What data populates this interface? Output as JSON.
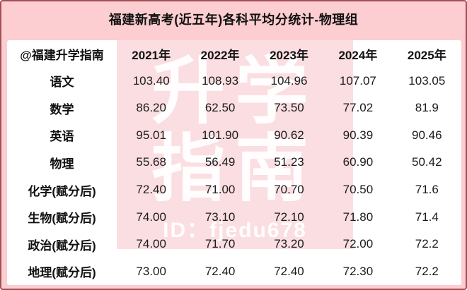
{
  "title": "福建新高考(近五年)各科平均分统计-物理组",
  "watermark": {
    "line1": "升学",
    "line2": "指南",
    "id_text": "ID：fjedu678"
  },
  "colors": {
    "page_background": "#fccdd1",
    "page_border": "#a34f55",
    "table_background": "#ffffff",
    "watermark_background": "#fbdee1",
    "watermark_text": "#ffffff",
    "text": "#1b1b1b"
  },
  "chart_data": {
    "type": "table",
    "title": "福建新高考(近五年)各科平均分统计-物理组",
    "columns": [
      "@福建升学指南",
      "2021年",
      "2022年",
      "2023年",
      "2024年",
      "2025年"
    ],
    "rows": [
      {
        "subject": "语文",
        "values": [
          "103.40",
          "108.93",
          "104.96",
          "107.07",
          "103.05"
        ]
      },
      {
        "subject": "数学",
        "values": [
          "86.20",
          "62.50",
          "73.50",
          "77.02",
          "81.9"
        ]
      },
      {
        "subject": "英语",
        "values": [
          "95.01",
          "101.90",
          "90.62",
          "90.39",
          "90.46"
        ]
      },
      {
        "subject": "物理",
        "values": [
          "55.68",
          "56.49",
          "51.23",
          "60.90",
          "50.42"
        ]
      },
      {
        "subject": "化学(赋分后)",
        "values": [
          "72.40",
          "71.00",
          "70.70",
          "70.50",
          "71.6"
        ]
      },
      {
        "subject": "生物(赋分后)",
        "values": [
          "74.00",
          "73.10",
          "72.10",
          "71.80",
          "71.4"
        ]
      },
      {
        "subject": "政治(赋分后)",
        "values": [
          "74.00",
          "71.70",
          "73.20",
          "72.00",
          "72.2"
        ]
      },
      {
        "subject": "地理(赋分后)",
        "values": [
          "73.00",
          "72.40",
          "72.40",
          "72.30",
          "72.2"
        ]
      }
    ]
  }
}
